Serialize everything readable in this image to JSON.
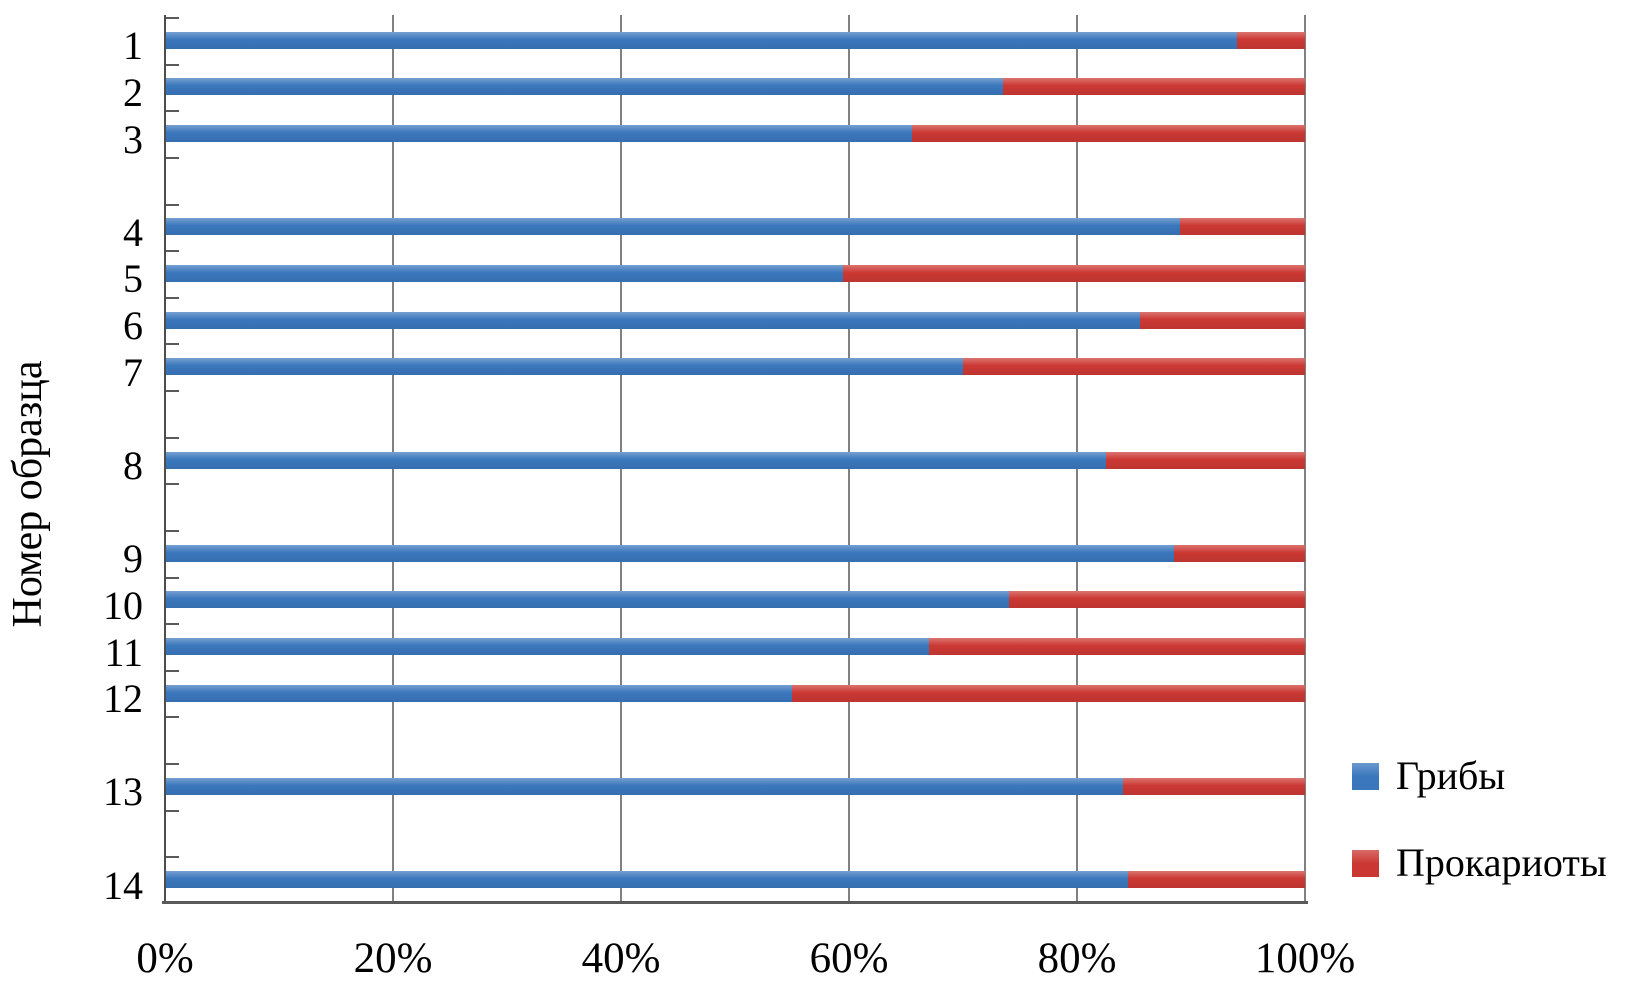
{
  "chart_data": {
    "type": "bar",
    "orientation": "horizontal",
    "stacked": true,
    "title": "",
    "xlabel": "",
    "ylabel": "Номер образца",
    "categories": [
      "1",
      "2",
      "3",
      "4",
      "5",
      "6",
      "7",
      "8",
      "9",
      "10",
      "11",
      "12",
      "13",
      "14"
    ],
    "category_slots": [
      0,
      1,
      2,
      4,
      5,
      6,
      7,
      9,
      11,
      12,
      13,
      14,
      16,
      18
    ],
    "total_slots": 19,
    "series": [
      {
        "name": "Грибы",
        "color": "#3A77BD",
        "values": [
          94,
          73.5,
          65.5,
          89,
          59.5,
          85.5,
          70,
          82.5,
          88.5,
          74,
          67,
          55,
          84,
          84.5
        ]
      },
      {
        "name": "Прокариоты",
        "color": "#CB3833",
        "values": [
          6,
          26.5,
          34.5,
          11,
          40.5,
          14.5,
          30,
          17.5,
          11.5,
          26,
          33,
          45,
          16,
          15.5
        ]
      }
    ],
    "x_axis": {
      "range": [
        0,
        100
      ],
      "tick_step": 20,
      "tick_labels": [
        "0%",
        "20%",
        "40%",
        "60%",
        "80%",
        "100%"
      ]
    },
    "grid": "vertical",
    "legend_position": "right-bottom",
    "colors": {
      "gridline": "#808080",
      "axis": "#5a5a5a",
      "background": "#ffffff"
    }
  }
}
